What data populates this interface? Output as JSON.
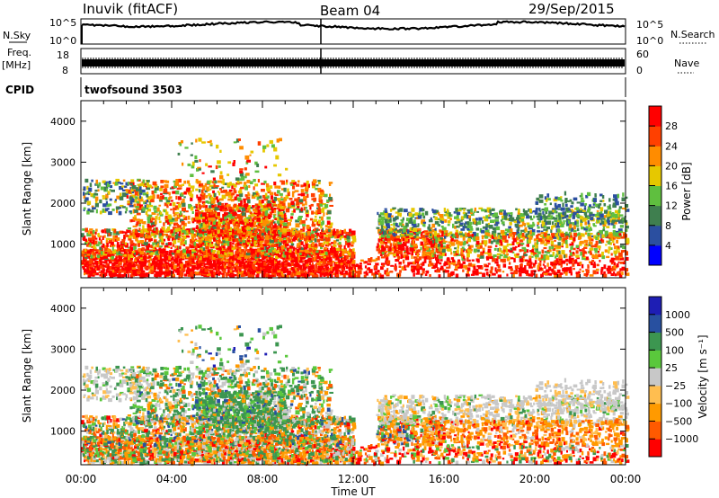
{
  "header": {
    "station": "Inuvik (fitACF)",
    "beam": "Beam 04",
    "date": "29/Sep/2015"
  },
  "noise_panel": {
    "left_label": "N.Sky",
    "right_label": "N.Search",
    "left_ticks": [
      "10^5",
      "10^0"
    ],
    "right_ticks": [
      "10^5",
      "10^0"
    ]
  },
  "freq_panel": {
    "left_label": "Freq.",
    "left_unit": "[MHz]",
    "left_ticks": [
      "18",
      "8"
    ],
    "right_label": "Nave",
    "right_ticks": [
      "60",
      "0"
    ]
  },
  "cpid": {
    "label": "CPID",
    "value": "twofsound 3503"
  },
  "colors": {
    "power": [
      "#0000ff",
      "#2b4fa0",
      "#3f7f4f",
      "#5fbf3f",
      "#e6c800",
      "#ff8c00",
      "#ff4000",
      "#ff0000"
    ],
    "velocity": [
      "#ff0000",
      "#ff5a00",
      "#ff9a00",
      "#ffbe50",
      "#c8c8c8",
      "#5ac83c",
      "#3c9650",
      "#2850a0",
      "#1e1eb4"
    ],
    "noise_line": "#000000"
  },
  "chart_data": [
    {
      "type": "heatmap",
      "panel": "power",
      "ylabel": "Slant Range [km]",
      "y_ticks": [
        1000,
        2000,
        3000,
        4000
      ],
      "x_ticks": [
        "00:00",
        "04:00",
        "08:00",
        "12:00",
        "16:00",
        "20:00",
        "00:00"
      ],
      "xlim_hours": [
        0,
        24
      ],
      "ylim_km": [
        180,
        4500
      ],
      "colorbar_label": "Power [dB]",
      "colorbar_ticks": [
        "4",
        "8",
        "12",
        "16",
        "20",
        "24",
        "28"
      ],
      "clim": [
        0,
        30
      ]
    },
    {
      "type": "heatmap",
      "panel": "velocity",
      "ylabel": "Slant Range [km]",
      "y_ticks": [
        1000,
        2000,
        3000,
        4000
      ],
      "x_ticks": [
        "00:00",
        "04:00",
        "08:00",
        "12:00",
        "16:00",
        "20:00",
        "00:00"
      ],
      "xlim_hours": [
        0,
        24
      ],
      "ylim_km": [
        180,
        4500
      ],
      "xlabel": "Time UT",
      "colorbar_label": "Velocity [m s⁻¹]",
      "colorbar_ticks": [
        "1000",
        "500",
        "100",
        "25",
        "−25",
        "−100",
        "−500",
        "−1000"
      ]
    }
  ]
}
